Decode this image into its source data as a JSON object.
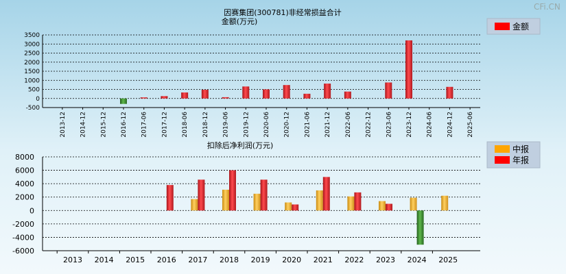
{
  "watermark": "CFi.CN",
  "chart_data": [
    {
      "type": "bar",
      "title": "因赛集团(300781)非经常损益合计",
      "subtitle": "金额(万元)",
      "legend": [
        {
          "name": "金额",
          "color": "#ff0000"
        }
      ],
      "ylim": [
        -500,
        3500
      ],
      "yticks": [
        3500,
        3000,
        2500,
        2000,
        1500,
        1000,
        500,
        0,
        -500
      ],
      "categories": [
        "2013-12",
        "2014-12",
        "2015-12",
        "2016-12",
        "2017-06",
        "2017-12",
        "2018-06",
        "2018-12",
        "2019-06",
        "2019-12",
        "2020-06",
        "2020-12",
        "2021-06",
        "2021-12",
        "2022-06",
        "2022-12",
        "2023-06",
        "2023-12",
        "2024-06",
        "2024-12",
        "2025-06"
      ],
      "values": [
        0,
        0,
        0,
        -300,
        60,
        130,
        330,
        480,
        70,
        660,
        500,
        740,
        260,
        820,
        380,
        0,
        880,
        3200,
        0,
        640,
        0
      ],
      "colors": {
        "positive": "#e8262a",
        "negative": "#3a8a2e"
      }
    },
    {
      "type": "bar",
      "title": "扣除后净利润(万元)",
      "legend": [
        {
          "name": "中报",
          "color": "#ffa500"
        },
        {
          "name": "年报",
          "color": "#ff0000"
        }
      ],
      "ylim": [
        -6000,
        8000
      ],
      "yticks": [
        8000,
        6000,
        4000,
        2000,
        0,
        -2000,
        -4000,
        -6000
      ],
      "categories": [
        "2013",
        "2014",
        "2015",
        "2016",
        "2017",
        "2018",
        "2019",
        "2020",
        "2021",
        "2022",
        "2023",
        "2024",
        "2025"
      ],
      "series": [
        {
          "name": "中报",
          "values": [
            0,
            0,
            0,
            0,
            1700,
            3100,
            2500,
            1200,
            3000,
            2100,
            1400,
            1900,
            2200
          ]
        },
        {
          "name": "年报",
          "values": [
            0,
            0,
            0,
            3800,
            4600,
            6000,
            4600,
            900,
            5000,
            2700,
            1000,
            -5100,
            0
          ]
        }
      ],
      "colors": {
        "mid": "#f0b030",
        "annual": "#e8262a",
        "negative": "#3a8a2e"
      }
    }
  ]
}
